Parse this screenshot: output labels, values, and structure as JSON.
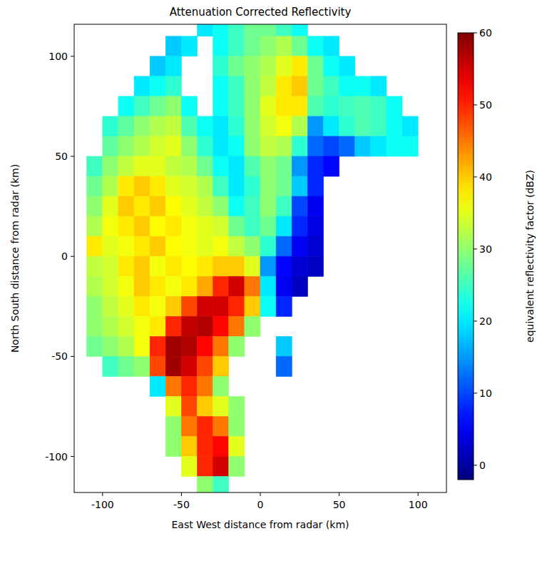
{
  "chart_data": {
    "type": "heatmap",
    "title": "Attenuation Corrected Reflectivity",
    "x_label": "East West distance from radar (km)",
    "y_label": "North South distance from radar (km)",
    "colorbar_label": "equivalent reflectivity factor (dBZ)",
    "xlim": [
      -118,
      118
    ],
    "ylim": [
      -118,
      116
    ],
    "xticks": [
      -100,
      -50,
      0,
      50,
      100
    ],
    "yticks": [
      -100,
      -50,
      0,
      50,
      100
    ],
    "colorbar_range": [
      -2,
      60
    ],
    "colorbar_ticks": [
      0,
      10,
      20,
      30,
      40,
      50,
      60
    ],
    "grid": false,
    "x": [
      -105,
      -95,
      -85,
      -75,
      -65,
      -55,
      -45,
      -35,
      -25,
      -15,
      -5,
      5,
      15,
      25,
      35,
      45,
      55,
      65,
      75,
      85,
      95,
      105
    ],
    "y": [
      115,
      105,
      95,
      85,
      75,
      65,
      55,
      45,
      35,
      25,
      15,
      5,
      -5,
      -15,
      -25,
      -35,
      -45,
      -55,
      -65,
      -75,
      -85,
      -95,
      -105,
      -115
    ],
    "cells": [
      [
        null,
        null,
        null,
        null,
        null,
        null,
        null,
        20,
        22,
        25,
        28,
        28,
        25,
        22,
        null,
        null,
        null,
        null,
        null,
        null,
        null,
        null
      ],
      [
        null,
        null,
        null,
        null,
        null,
        18,
        20,
        null,
        22,
        25,
        28,
        30,
        32,
        28,
        22,
        20,
        null,
        null,
        null,
        null,
        null,
        null
      ],
      [
        null,
        null,
        null,
        null,
        18,
        20,
        null,
        null,
        24,
        28,
        30,
        32,
        35,
        38,
        28,
        22,
        20,
        null,
        null,
        null,
        null,
        null
      ],
      [
        null,
        null,
        null,
        20,
        22,
        24,
        null,
        null,
        22,
        25,
        30,
        33,
        38,
        40,
        28,
        25,
        22,
        22,
        20,
        null,
        null,
        null
      ],
      [
        null,
        null,
        22,
        25,
        28,
        30,
        22,
        null,
        22,
        25,
        30,
        35,
        38,
        38,
        26,
        24,
        25,
        26,
        25,
        22,
        null,
        null
      ],
      [
        null,
        24,
        27,
        30,
        32,
        33,
        26,
        22,
        20,
        24,
        30,
        34,
        36,
        32,
        15,
        20,
        24,
        26,
        25,
        22,
        20,
        null
      ],
      [
        null,
        27,
        30,
        32,
        34,
        35,
        30,
        24,
        20,
        22,
        30,
        33,
        32,
        24,
        12,
        10,
        12,
        18,
        20,
        22,
        22,
        null
      ],
      [
        25,
        30,
        33,
        35,
        35,
        33,
        32,
        28,
        22,
        20,
        26,
        30,
        28,
        15,
        8,
        6,
        null,
        null,
        null,
        null,
        null,
        null
      ],
      [
        28,
        32,
        38,
        40,
        38,
        35,
        34,
        32,
        25,
        20,
        24,
        30,
        28,
        18,
        8,
        null,
        null,
        null,
        null,
        null,
        null,
        null
      ],
      [
        30,
        35,
        40,
        38,
        40,
        37,
        35,
        33,
        30,
        22,
        25,
        30,
        25,
        10,
        5,
        null,
        null,
        null,
        null,
        null,
        null,
        null
      ],
      [
        32,
        36,
        38,
        40,
        37,
        38,
        36,
        35,
        34,
        28,
        25,
        28,
        20,
        8,
        4,
        null,
        null,
        null,
        null,
        null,
        null,
        null
      ],
      [
        38,
        35,
        36,
        38,
        40,
        37,
        36,
        35,
        36,
        33,
        30,
        24,
        12,
        5,
        3,
        null,
        null,
        null,
        null,
        null,
        null,
        null
      ],
      [
        33,
        34,
        38,
        40,
        36,
        38,
        37,
        38,
        40,
        40,
        35,
        15,
        6,
        3,
        2,
        null,
        null,
        null,
        null,
        null,
        null,
        null
      ],
      [
        32,
        34,
        36,
        40,
        38,
        36,
        38,
        42,
        50,
        55,
        45,
        20,
        5,
        2,
        null,
        null,
        null,
        null,
        null,
        null,
        null,
        null
      ],
      [
        30,
        33,
        35,
        38,
        36,
        40,
        48,
        55,
        55,
        50,
        40,
        22,
        8,
        null,
        null,
        null,
        null,
        null,
        null,
        null,
        null,
        null
      ],
      [
        30,
        32,
        34,
        36,
        38,
        50,
        56,
        57,
        52,
        45,
        30,
        null,
        null,
        null,
        null,
        null,
        null,
        null,
        null,
        null,
        null,
        null
      ],
      [
        28,
        30,
        32,
        36,
        50,
        58,
        57,
        52,
        45,
        30,
        null,
        null,
        18,
        null,
        null,
        null,
        null,
        null,
        null,
        null,
        null,
        null
      ],
      [
        null,
        25,
        28,
        30,
        48,
        58,
        55,
        48,
        40,
        null,
        null,
        null,
        12,
        null,
        null,
        null,
        null,
        null,
        null,
        null,
        null,
        null
      ],
      [
        null,
        null,
        null,
        null,
        20,
        45,
        50,
        45,
        30,
        null,
        null,
        null,
        null,
        null,
        null,
        null,
        null,
        null,
        null,
        null,
        null,
        null
      ],
      [
        null,
        null,
        null,
        null,
        null,
        35,
        48,
        40,
        35,
        30,
        null,
        null,
        null,
        null,
        null,
        null,
        null,
        null,
        null,
        null,
        null,
        null
      ],
      [
        null,
        null,
        null,
        null,
        null,
        30,
        45,
        50,
        45,
        30,
        null,
        null,
        null,
        null,
        null,
        null,
        null,
        null,
        null,
        null,
        null,
        null
      ],
      [
        null,
        null,
        null,
        null,
        null,
        30,
        40,
        50,
        52,
        35,
        null,
        null,
        null,
        null,
        null,
        null,
        null,
        null,
        null,
        null,
        null,
        null
      ],
      [
        null,
        null,
        null,
        null,
        null,
        null,
        35,
        50,
        55,
        30,
        null,
        null,
        null,
        null,
        null,
        null,
        null,
        null,
        null,
        null,
        null,
        null
      ],
      [
        null,
        null,
        null,
        null,
        null,
        null,
        null,
        30,
        25,
        null,
        null,
        null,
        null,
        null,
        null,
        null,
        null,
        null,
        null,
        null,
        null,
        null
      ]
    ]
  }
}
